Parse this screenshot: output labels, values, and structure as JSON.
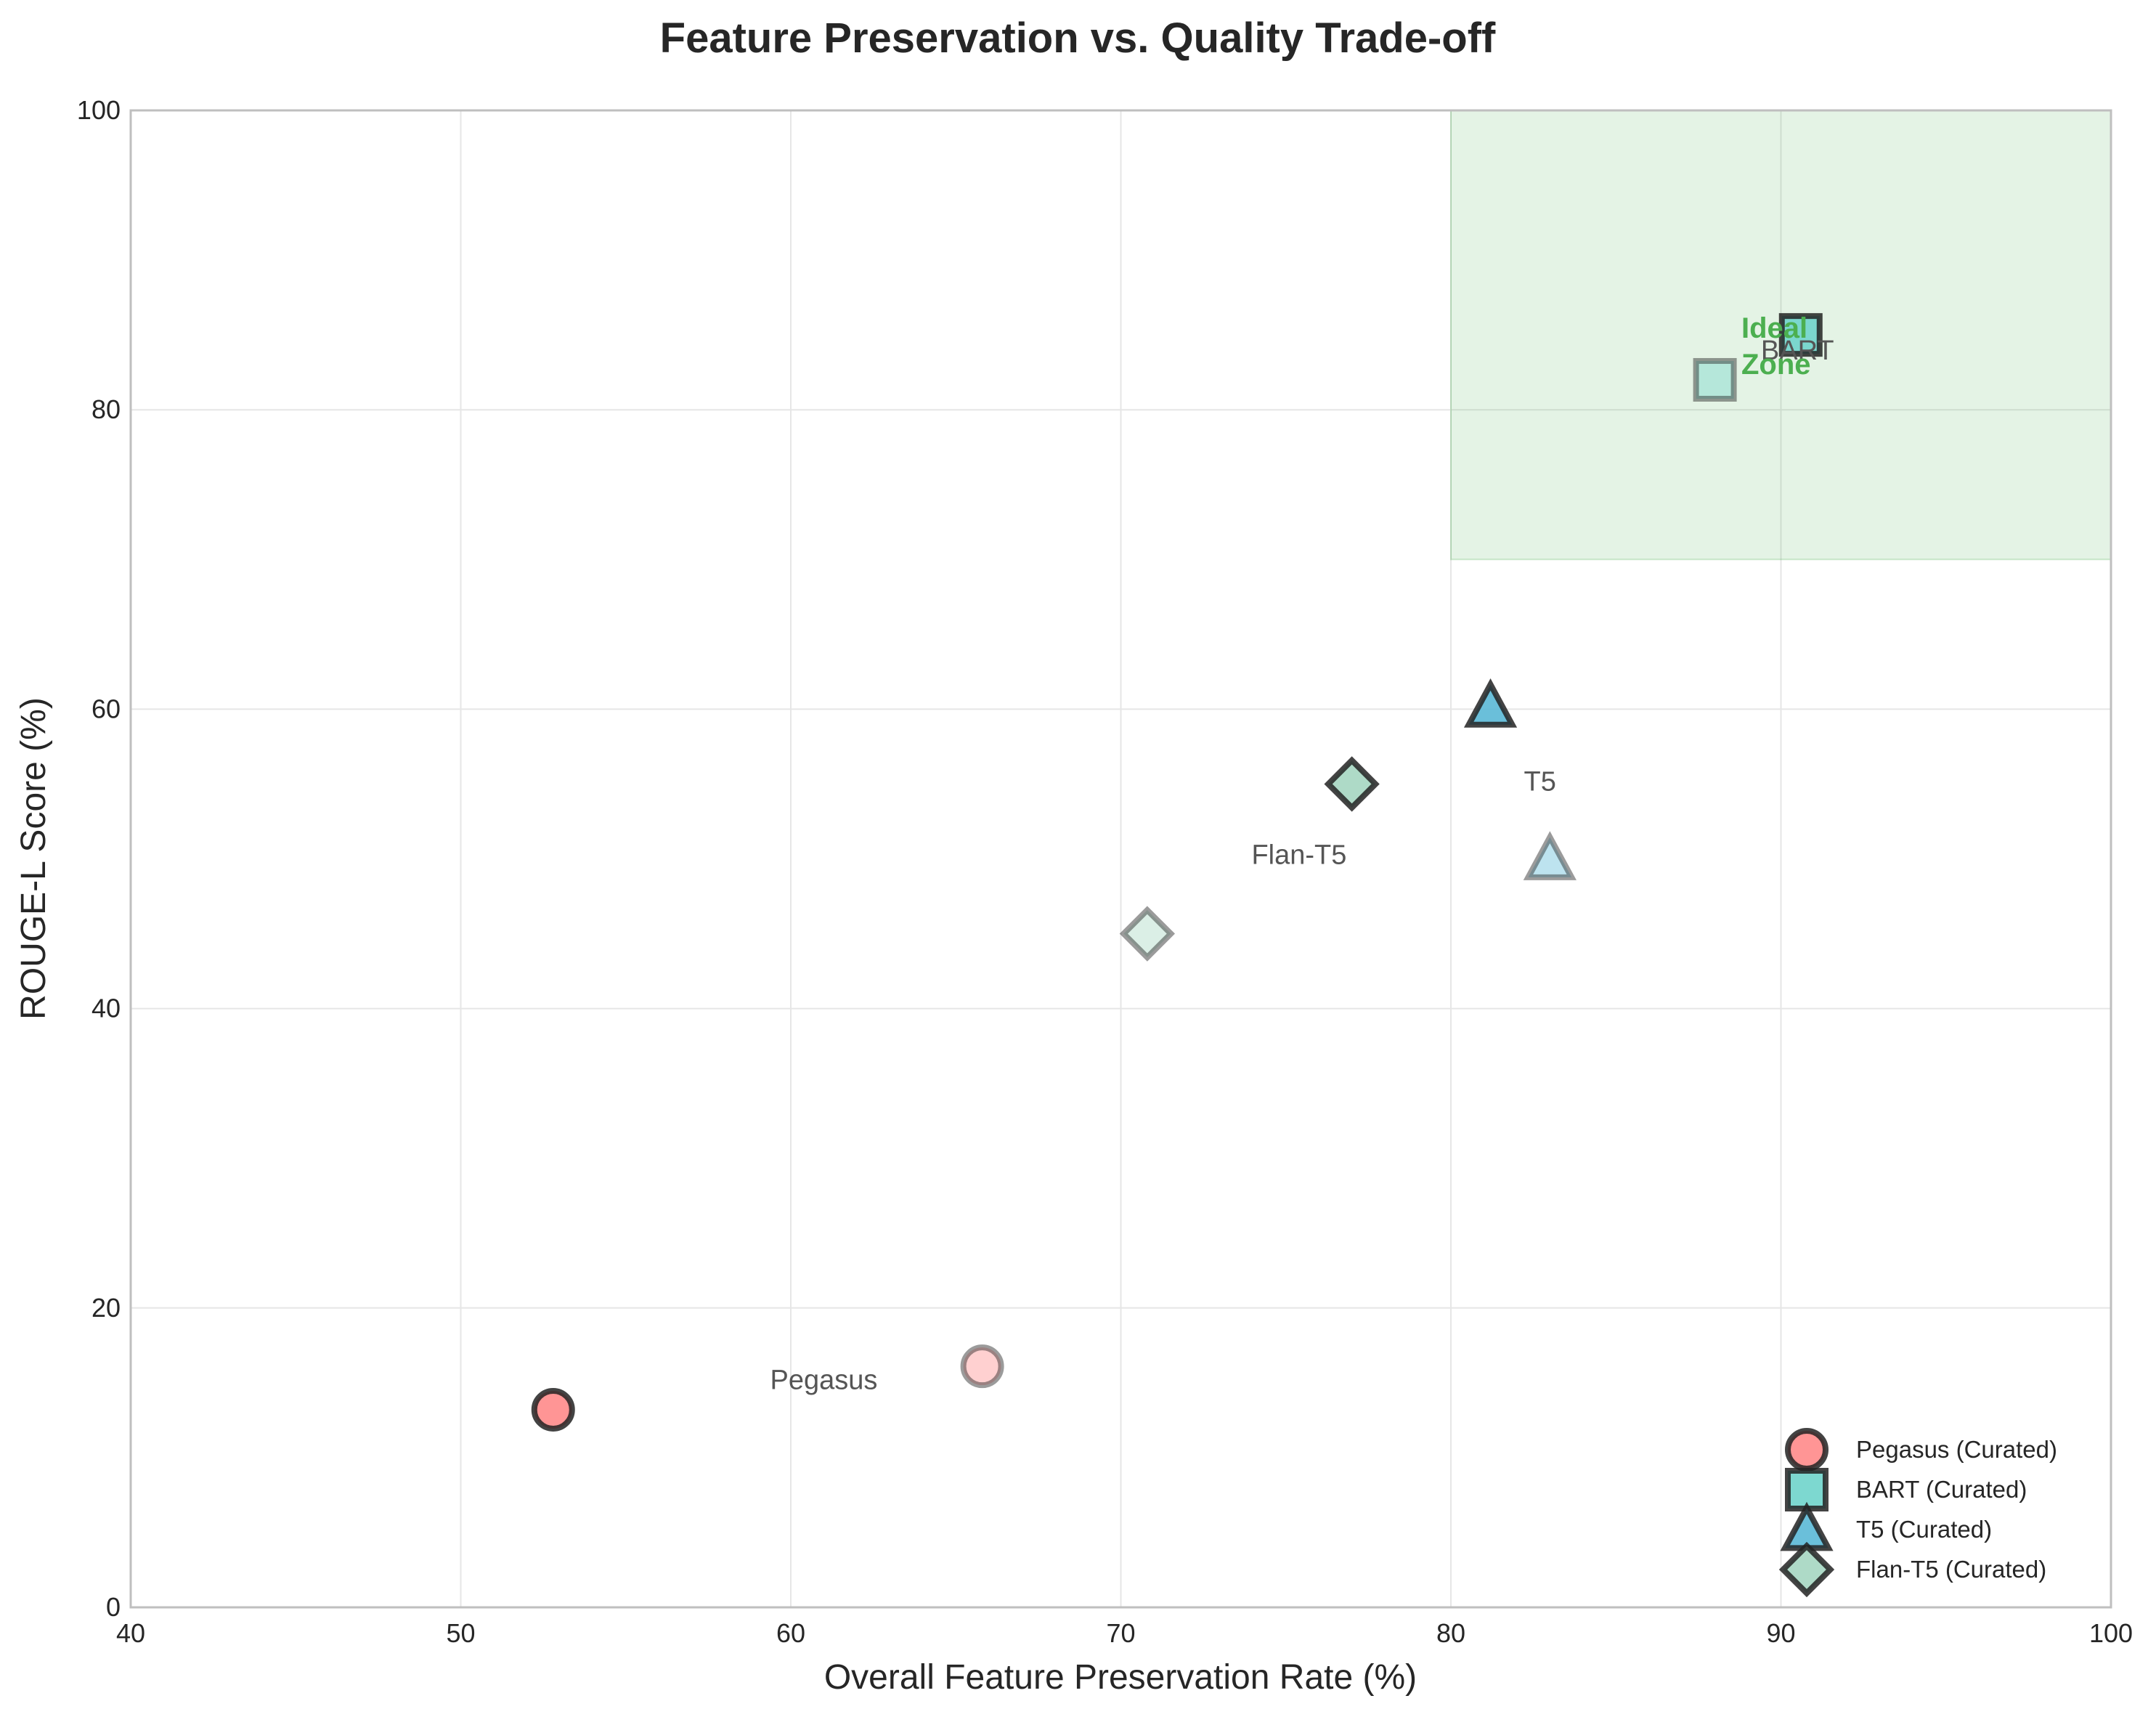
{
  "chart_data": {
    "type": "scatter",
    "title": "Feature Preservation vs. Quality Trade-off",
    "xlabel": "Overall Feature Preservation Rate (%)",
    "ylabel": "ROUGE-L Score (%)",
    "xlim": [
      40,
      100
    ],
    "ylim": [
      0,
      100
    ],
    "xticks": [
      40,
      50,
      60,
      70,
      80,
      90,
      100
    ],
    "yticks": [
      0,
      20,
      40,
      60,
      80,
      100
    ],
    "grid": true,
    "legend_position": "bottom-right",
    "ideal_zone": {
      "label": [
        "Ideal",
        "Zone"
      ],
      "x_range": [
        80,
        100
      ],
      "y_range": [
        70,
        100
      ],
      "color": "#4caf50"
    },
    "series": [
      {
        "name": "Pegasus (Curated)",
        "model": "Pegasus",
        "marker": "circle",
        "color": "#ff8a8a",
        "curated": {
          "x": 52.8,
          "y": 13.2
        },
        "original": {
          "x": 65.8,
          "y": 16.1
        },
        "annotation": {
          "text": "Pegasus",
          "x": 61,
          "y": 15.2
        }
      },
      {
        "name": "BART (Curated)",
        "model": "BART",
        "marker": "square",
        "color": "#6fd4cb",
        "curated": {
          "x": 90.6,
          "y": 85.0
        },
        "original": {
          "x": 88.0,
          "y": 82.0
        },
        "annotation": {
          "text": "BART",
          "x": 90.5,
          "y": 84.0
        }
      },
      {
        "name": "T5 (Curated)",
        "model": "T5",
        "marker": "triangle",
        "color": "#5ab8d6",
        "curated": {
          "x": 81.2,
          "y": 60.2
        },
        "original": {
          "x": 83.0,
          "y": 50.0
        },
        "annotation": {
          "text": "T5",
          "x": 82.7,
          "y": 55.2
        }
      },
      {
        "name": "Flan-T5 (Curated)",
        "model": "Flan-T5",
        "marker": "diamond",
        "color": "#a5d6c1",
        "curated": {
          "x": 77.0,
          "y": 55.0
        },
        "original": {
          "x": 70.8,
          "y": 45.0
        },
        "annotation": {
          "text": "Flan-T5",
          "x": 75.4,
          "y": 50.3
        }
      }
    ]
  }
}
